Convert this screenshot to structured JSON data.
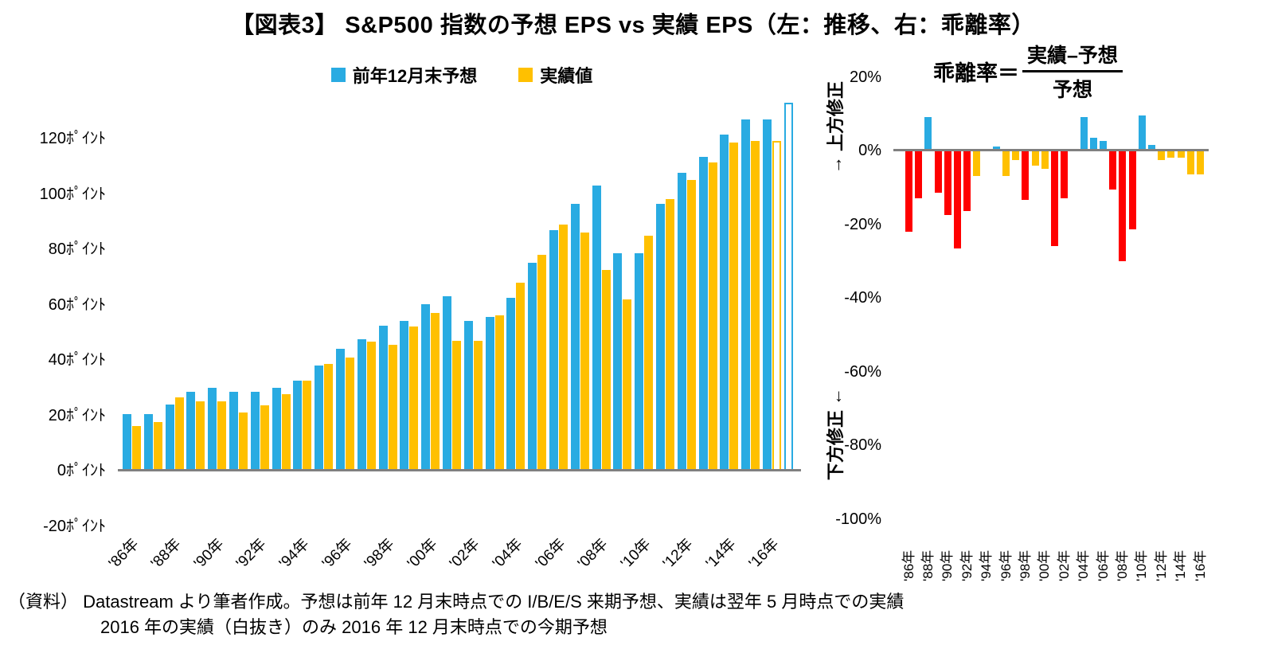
{
  "title": "【図表3】 S&P500 指数の予想 EPS vs 実績 EPS（左：推移、右：乖離率）",
  "legend": {
    "forecast_label": "前年12月末予想",
    "actual_label": "実績値"
  },
  "colors": {
    "blue": "#29ABE2",
    "yellow": "#FFC000",
    "red": "#FF0000",
    "axis": "#808080"
  },
  "left_axis": {
    "tick_labels": [
      "120ﾎﾟｲﾝﾄ",
      "100ﾎﾟｲﾝﾄ",
      "80ﾎﾟｲﾝﾄ",
      "60ﾎﾟｲﾝﾄ",
      "40ﾎﾟｲﾝﾄ",
      "20ﾎﾟｲﾝﾄ",
      "0ﾎﾟｲﾝﾄ",
      "-20ﾎﾟｲﾝﾄ"
    ],
    "tick_values": [
      120,
      100,
      80,
      60,
      40,
      20,
      0,
      -20
    ]
  },
  "right_axis": {
    "tick_labels": [
      "20%",
      "0%",
      "-20%",
      "-40%",
      "-60%",
      "-80%",
      "-100%"
    ],
    "tick_values": [
      20,
      0,
      -20,
      -40,
      -60,
      -80,
      -100
    ],
    "label_top": "→ 上方修正",
    "label_bottom": "下方修正 ←"
  },
  "formula": {
    "lhs": "乖離率＝",
    "numerator": "実績–予想",
    "denominator": "予想"
  },
  "x_tick_labels": [
    "'86年",
    "'88年",
    "'90年",
    "'92年",
    "'94年",
    "'96年",
    "'98年",
    "'00年",
    "'02年",
    "'04年",
    "'06年",
    "'08年",
    "'10年",
    "'12年",
    "'14年",
    "'16年"
  ],
  "footnote": {
    "line1": "（資料） Datastream より筆者作成。予想は前年 12 月末時点での I/B/E/S 来期予想、実績は翌年 5 月時点での実績",
    "line2": "2016 年の実績（白抜き）のみ 2016 年 12 月末時点での今期予想"
  },
  "chart_data": [
    {
      "type": "bar",
      "title": "S&P500指数の予想EPS vs 実績EPS（推移）",
      "ylabel": "ﾎﾟｲﾝﾄ",
      "ylim": [
        -20,
        135
      ],
      "y_ticks": [
        120,
        100,
        80,
        60,
        40,
        20,
        0,
        -20
      ],
      "categories": [
        "'86",
        "'87",
        "'88",
        "'89",
        "'90",
        "'91",
        "'92",
        "'93",
        "'94",
        "'95",
        "'96",
        "'97",
        "'98",
        "'99",
        "'00",
        "'01",
        "'02",
        "'03",
        "'04",
        "'05",
        "'06",
        "'07",
        "'08",
        "'09",
        "'10",
        "'11",
        "'12",
        "'13",
        "'14",
        "'15",
        "'16",
        "'17"
      ],
      "series": [
        {
          "name": "前年12月末予想",
          "color": "#29ABE2",
          "values": [
            20.5,
            20.5,
            24,
            28.5,
            30,
            28.5,
            28.5,
            30,
            32.5,
            38,
            44,
            47.5,
            52.5,
            54,
            60,
            63,
            54,
            55.5,
            62.5,
            75,
            87,
            96.5,
            103,
            78.5,
            78.5,
            96.5,
            107.5,
            113.5,
            121.5,
            127,
            127,
            133
          ]
        },
        {
          "name": "実績値",
          "color": "#FFC000",
          "values": [
            16,
            17.5,
            26.5,
            25,
            25,
            21,
            23.5,
            27.5,
            32.5,
            38.5,
            41,
            46.5,
            45.5,
            52,
            57,
            47,
            47,
            56,
            68,
            78,
            89,
            86,
            72.5,
            62,
            85,
            98,
            105,
            111.5,
            118.5,
            119,
            119,
            null
          ]
        }
      ],
      "forecast_open_indices": [
        31
      ],
      "actual_open_indices": [
        30
      ],
      "open_bar_note": "2016 実績と 2017 予想は白抜き（輪郭のみ）の棒"
    },
    {
      "type": "bar",
      "title": "乖離率＝（実績−予想）／予想",
      "ylim": [
        -100,
        20
      ],
      "y_ticks": [
        20,
        0,
        -20,
        -40,
        -60,
        -80,
        -100
      ],
      "categories": [
        "'86",
        "'87",
        "'88",
        "'89",
        "'90",
        "'91",
        "'92",
        "'93",
        "'94",
        "'95",
        "'96",
        "'97",
        "'98",
        "'99",
        "'00",
        "'01",
        "'02",
        "'03",
        "'04",
        "'05",
        "'06",
        "'07",
        "'08",
        "'09",
        "'10",
        "'11",
        "'12",
        "'13",
        "'14",
        "'15",
        "'16"
      ],
      "values": [
        -22,
        -13,
        9,
        -11.5,
        -17.5,
        -26.5,
        -16.5,
        -7,
        0.3,
        1,
        -7,
        -2.5,
        -13.5,
        -4,
        -5,
        -26,
        -13,
        0.5,
        9,
        3.5,
        2.5,
        -10.5,
        -30,
        -21.5,
        9.5,
        1.5,
        -2.5,
        -2,
        -2,
        -6.5,
        -6.5
      ],
      "bar_colors": [
        "red",
        "red",
        "blue",
        "red",
        "red",
        "red",
        "red",
        "yellow",
        "blue",
        "blue",
        "yellow",
        "yellow",
        "red",
        "yellow",
        "yellow",
        "red",
        "red",
        "blue",
        "blue",
        "blue",
        "blue",
        "red",
        "red",
        "red",
        "blue",
        "blue",
        "yellow",
        "yellow",
        "yellow",
        "yellow",
        "yellow"
      ]
    }
  ]
}
